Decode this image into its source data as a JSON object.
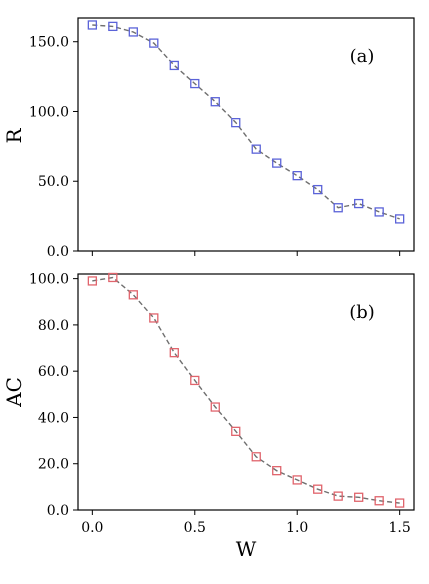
{
  "chart_data": [
    {
      "type": "line",
      "panel_label": "(a)",
      "xlabel": "",
      "ylabel": "R",
      "xlim": [
        -0.07,
        1.57
      ],
      "ylim": [
        0,
        167
      ],
      "xticks": [
        0.0,
        0.5,
        1.0,
        1.5
      ],
      "xtick_labels": [
        "",
        "",
        "",
        ""
      ],
      "yticks": [
        0,
        50,
        100,
        150
      ],
      "ytick_labels": [
        "0.0",
        "50.0",
        "100.0",
        "150.0"
      ],
      "grid": false,
      "marker": "square",
      "marker_color": "#5b63d8",
      "line_style": "dashed",
      "line_color": "#6f6f6f",
      "x": [
        0.0,
        0.1,
        0.2,
        0.3,
        0.4,
        0.5,
        0.6,
        0.7,
        0.8,
        0.9,
        1.0,
        1.1,
        1.2,
        1.3,
        1.4,
        1.5
      ],
      "values": [
        162,
        161,
        157,
        149,
        133,
        120,
        107,
        92,
        73,
        63,
        54,
        44,
        31,
        34,
        28,
        23
      ]
    },
    {
      "type": "line",
      "panel_label": "(b)",
      "xlabel": "W",
      "ylabel": "AC",
      "xlim": [
        -0.07,
        1.57
      ],
      "ylim": [
        0,
        102
      ],
      "xticks": [
        0.0,
        0.5,
        1.0,
        1.5
      ],
      "xtick_labels": [
        "0.0",
        "0.5",
        "1.0",
        "1.5"
      ],
      "yticks": [
        0,
        20,
        40,
        60,
        80,
        100
      ],
      "ytick_labels": [
        "0.0",
        "20.0",
        "40.0",
        "60.0",
        "80.0",
        "100.0"
      ],
      "grid": false,
      "marker": "square",
      "marker_color": "#e0646c",
      "line_style": "dashed",
      "line_color": "#6f6f6f",
      "x": [
        0.0,
        0.1,
        0.2,
        0.3,
        0.4,
        0.5,
        0.6,
        0.7,
        0.8,
        0.9,
        1.0,
        1.1,
        1.2,
        1.3,
        1.4,
        1.5
      ],
      "values": [
        99,
        100.5,
        93,
        83,
        68,
        56,
        44.5,
        34,
        23,
        17,
        13,
        9,
        6,
        5.5,
        4,
        3
      ]
    }
  ]
}
